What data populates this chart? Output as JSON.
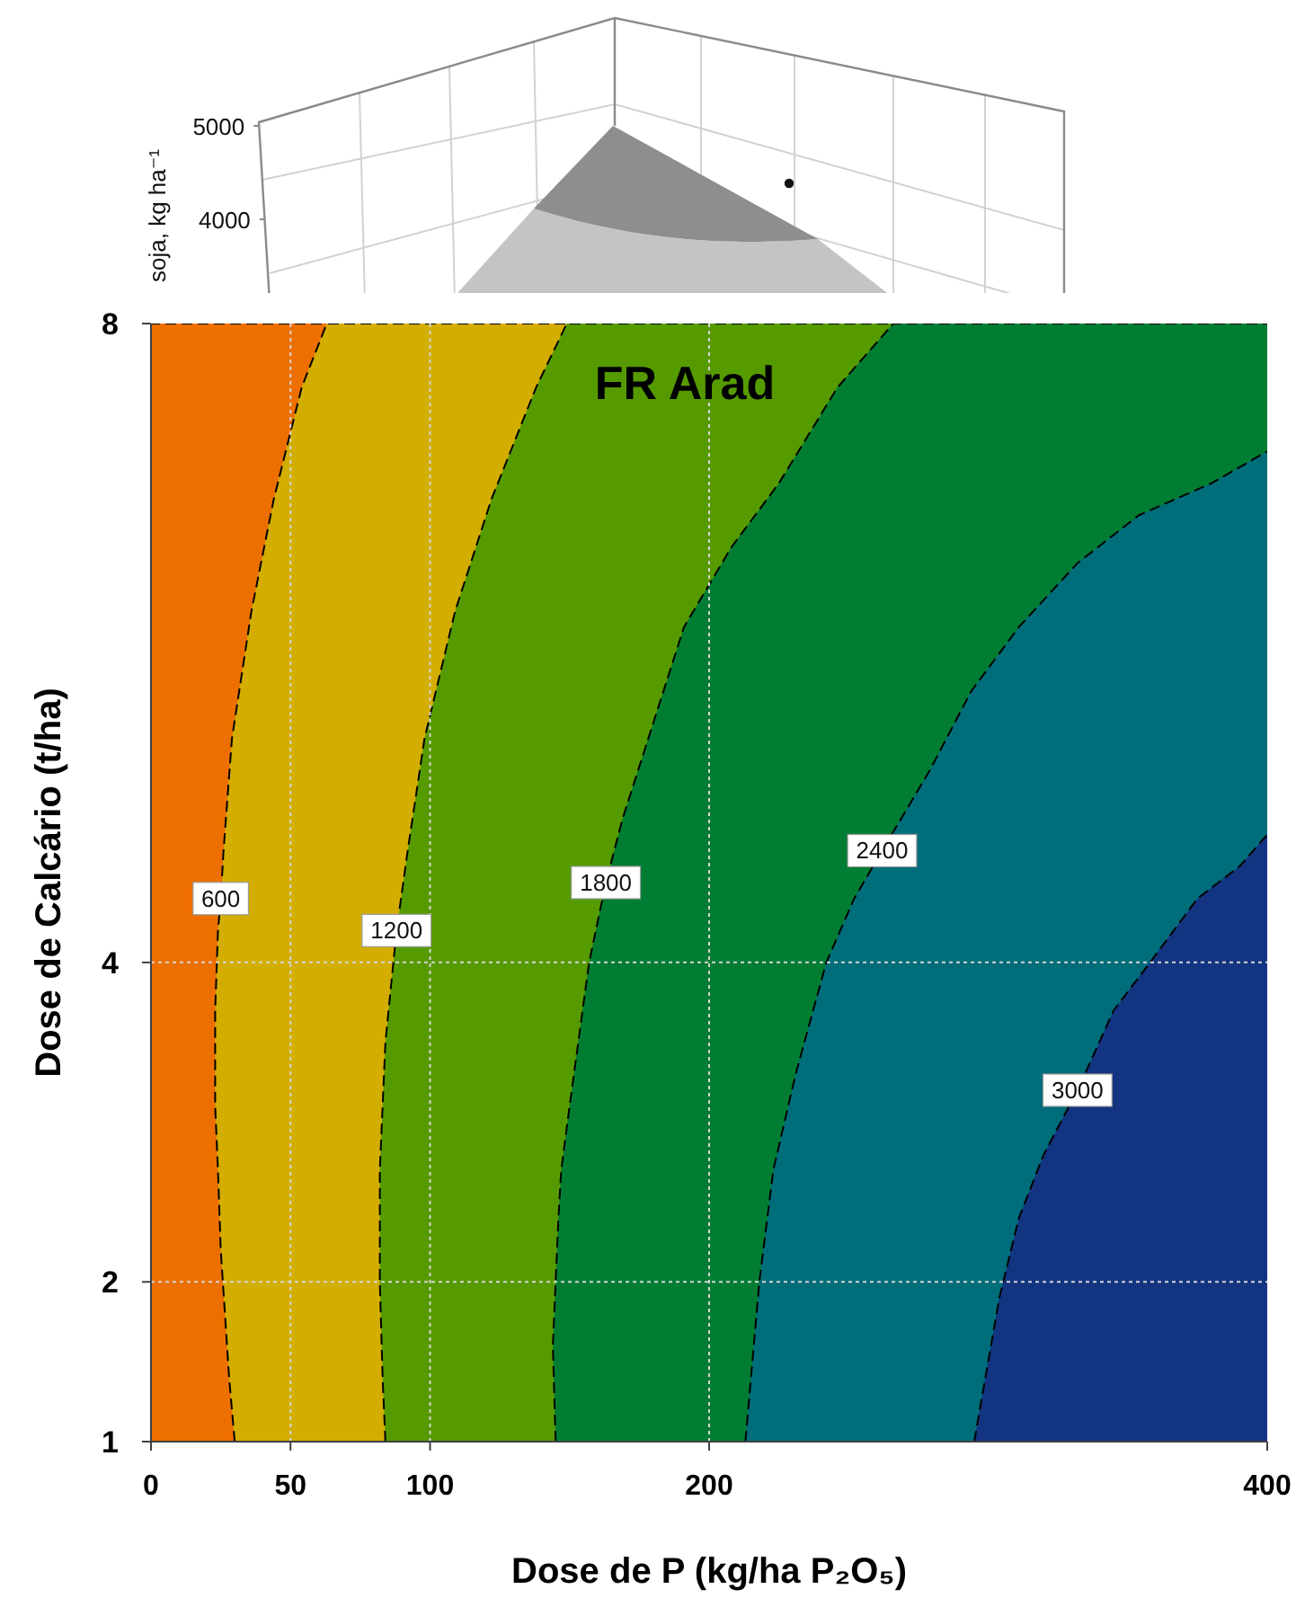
{
  "chart_data": [
    {
      "type": "other",
      "ylabel": "soja, kg ha⁻¹",
      "annotations": [
        "5000",
        "4000"
      ]
    },
    {
      "type": "area",
      "title": "FR Arad",
      "xlabel": "Dose de P (kg/ha P₂O₅)",
      "ylabel": "Dose de Calcário (t/ha)",
      "xlim": [
        0,
        400
      ],
      "ylim": [
        1,
        8
      ],
      "xticks": [
        0,
        50,
        100,
        200,
        400
      ],
      "yticks": [
        1,
        2,
        4,
        8
      ],
      "grid": true,
      "line_style": "dashed",
      "series": [
        {
          "color": "#ec6f00",
          "x": [
            0,
            0,
            400
          ],
          "values": [
            1,
            8,
            8
          ]
        },
        {
          "name": "600",
          "color": "#d3ad00",
          "x": [
            30,
            28,
            25,
            24,
            23,
            23,
            24,
            25,
            26,
            29,
            36,
            44,
            54,
            63,
            400
          ],
          "values": [
            1,
            1.4,
            2.2,
            2.7,
            3.1,
            3.7,
            4.2,
            4.4,
            4.7,
            5.4,
            6.2,
            6.9,
            7.6,
            8,
            8
          ]
        },
        {
          "name": "1200",
          "color": "#559b00",
          "x": [
            84,
            83,
            82,
            82,
            82,
            84,
            88,
            92,
            98,
            109,
            122,
            138,
            149,
            400
          ],
          "values": [
            1,
            1.4,
            2,
            2.4,
            2.7,
            3.5,
            4.2,
            4.7,
            5.4,
            6.2,
            6.9,
            7.6,
            8,
            8
          ]
        },
        {
          "name": "1800",
          "color": "#007d32",
          "x": [
            145,
            144,
            145,
            146,
            147,
            150,
            157,
            163,
            169,
            180,
            191,
            208,
            225,
            246,
            266,
            400
          ],
          "values": [
            1,
            1.6,
            2,
            2.4,
            2.7,
            3.1,
            4,
            4.5,
            4.9,
            5.5,
            6.1,
            6.6,
            7,
            7.6,
            8,
            8
          ]
        },
        {
          "name": "2400",
          "color": "#006d7b",
          "x": [
            213,
            218,
            223,
            231,
            242,
            252,
            262,
            279,
            294,
            311,
            332,
            354,
            380,
            400
          ],
          "values": [
            1,
            2,
            2.7,
            3.3,
            4,
            4.4,
            4.7,
            5.2,
            5.7,
            6.1,
            6.5,
            6.8,
            7,
            7.2
          ]
        },
        {
          "name": "3000",
          "color": "#133480",
          "x": [
            295,
            299,
            304,
            311,
            320,
            332,
            345,
            358,
            375,
            390,
            400
          ],
          "values": [
            1,
            1.4,
            1.9,
            2.4,
            2.8,
            3.2,
            3.7,
            4,
            4.4,
            4.6,
            4.8
          ]
        }
      ]
    }
  ]
}
